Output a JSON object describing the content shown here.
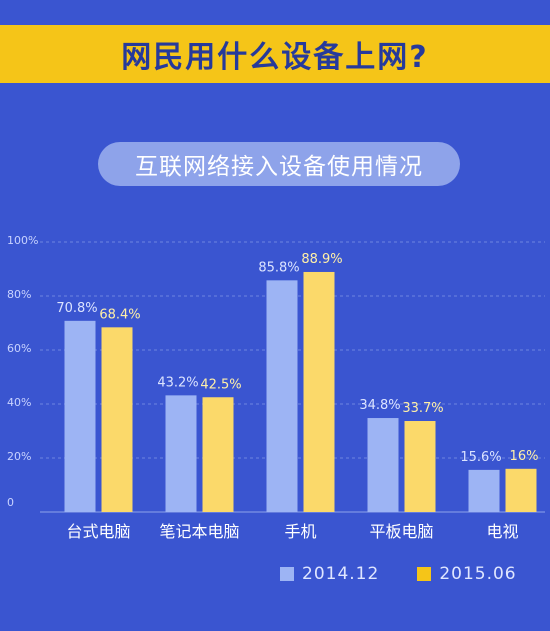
{
  "header": {
    "title": "网民用什么设备上网?"
  },
  "subtitle": "互联网络接入设备使用情况",
  "colors": {
    "series1": "#9db4f4",
    "series2": "#fbd96a",
    "label1": "#dbe3ff",
    "label2": "#fff0a8"
  },
  "chart_data": {
    "type": "bar",
    "title": "互联网络接入设备使用情况",
    "categories": [
      "台式电脑",
      "笔记本电脑",
      "手机",
      "平板电脑",
      "电视"
    ],
    "series": [
      {
        "name": "2014.12",
        "values": [
          70.8,
          43.2,
          85.8,
          34.8,
          15.6
        ],
        "labels": [
          "70.8%",
          "43.2%",
          "85.8%",
          "34.8%",
          "15.6%"
        ]
      },
      {
        "name": "2015.06",
        "values": [
          68.4,
          42.5,
          88.9,
          33.7,
          16
        ],
        "labels": [
          "68.4%",
          "42.5%",
          "88.9%",
          "33.7%",
          "16%"
        ]
      }
    ],
    "yticks": [
      "0",
      "20%",
      "40%",
      "60%",
      "80%",
      "100%"
    ],
    "ylim": [
      0,
      100
    ],
    "grid": true,
    "legend_position": "bottom-right"
  },
  "legend": [
    {
      "label": "2014.12"
    },
    {
      "label": "2015.06"
    }
  ]
}
